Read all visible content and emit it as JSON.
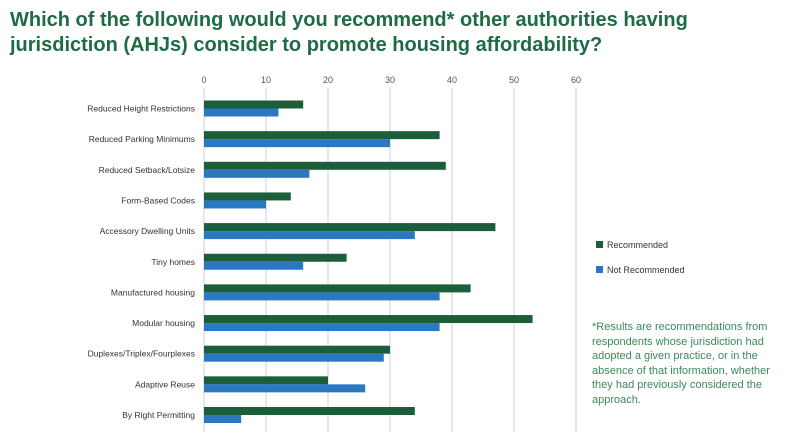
{
  "title": "Which of the following would you recommend* other authorities having jurisdiction (AHJs) consider to promote housing affordability?",
  "footnote": "*Results are recommendations from respondents whose jurisdiction had adopted a given practice, or in the absence of that information, whether they had previously considered the approach.",
  "colors": {
    "recommended": "#1c5e3a",
    "not_recommended": "#2a78c4",
    "gridline": "#cfcfcf",
    "title": "#1f6b45",
    "footnote": "#3a8a5a"
  },
  "chart_data": {
    "type": "bar",
    "orientation": "horizontal",
    "title": "Which of the following would you recommend* other authorities having jurisdiction (AHJs) consider to promote housing affordability?",
    "xlim": [
      0,
      60
    ],
    "xticks": [
      0,
      10,
      20,
      30,
      40,
      50,
      60
    ],
    "xlabel": "",
    "ylabel": "",
    "grid": true,
    "legend_position": "right",
    "categories": [
      "Reduced Height Restrictions",
      "Reduced Parking Minimums",
      "Reduced Setback/Lotsize",
      "Form-Based Codes",
      "Accessory Dwelling Units",
      "Tiny homes",
      "Manufactured housing",
      "Modular housing",
      "Duplexes/Triplex/Fourplexes",
      "Adaptive Reuse",
      "By Right Permitting"
    ],
    "series": [
      {
        "name": "Recommended",
        "values": [
          16,
          38,
          39,
          14,
          47,
          23,
          43,
          53,
          30,
          20,
          34
        ]
      },
      {
        "name": "Not Recommended",
        "values": [
          12,
          30,
          17,
          10,
          34,
          16,
          38,
          38,
          29,
          26,
          6
        ]
      }
    ]
  }
}
